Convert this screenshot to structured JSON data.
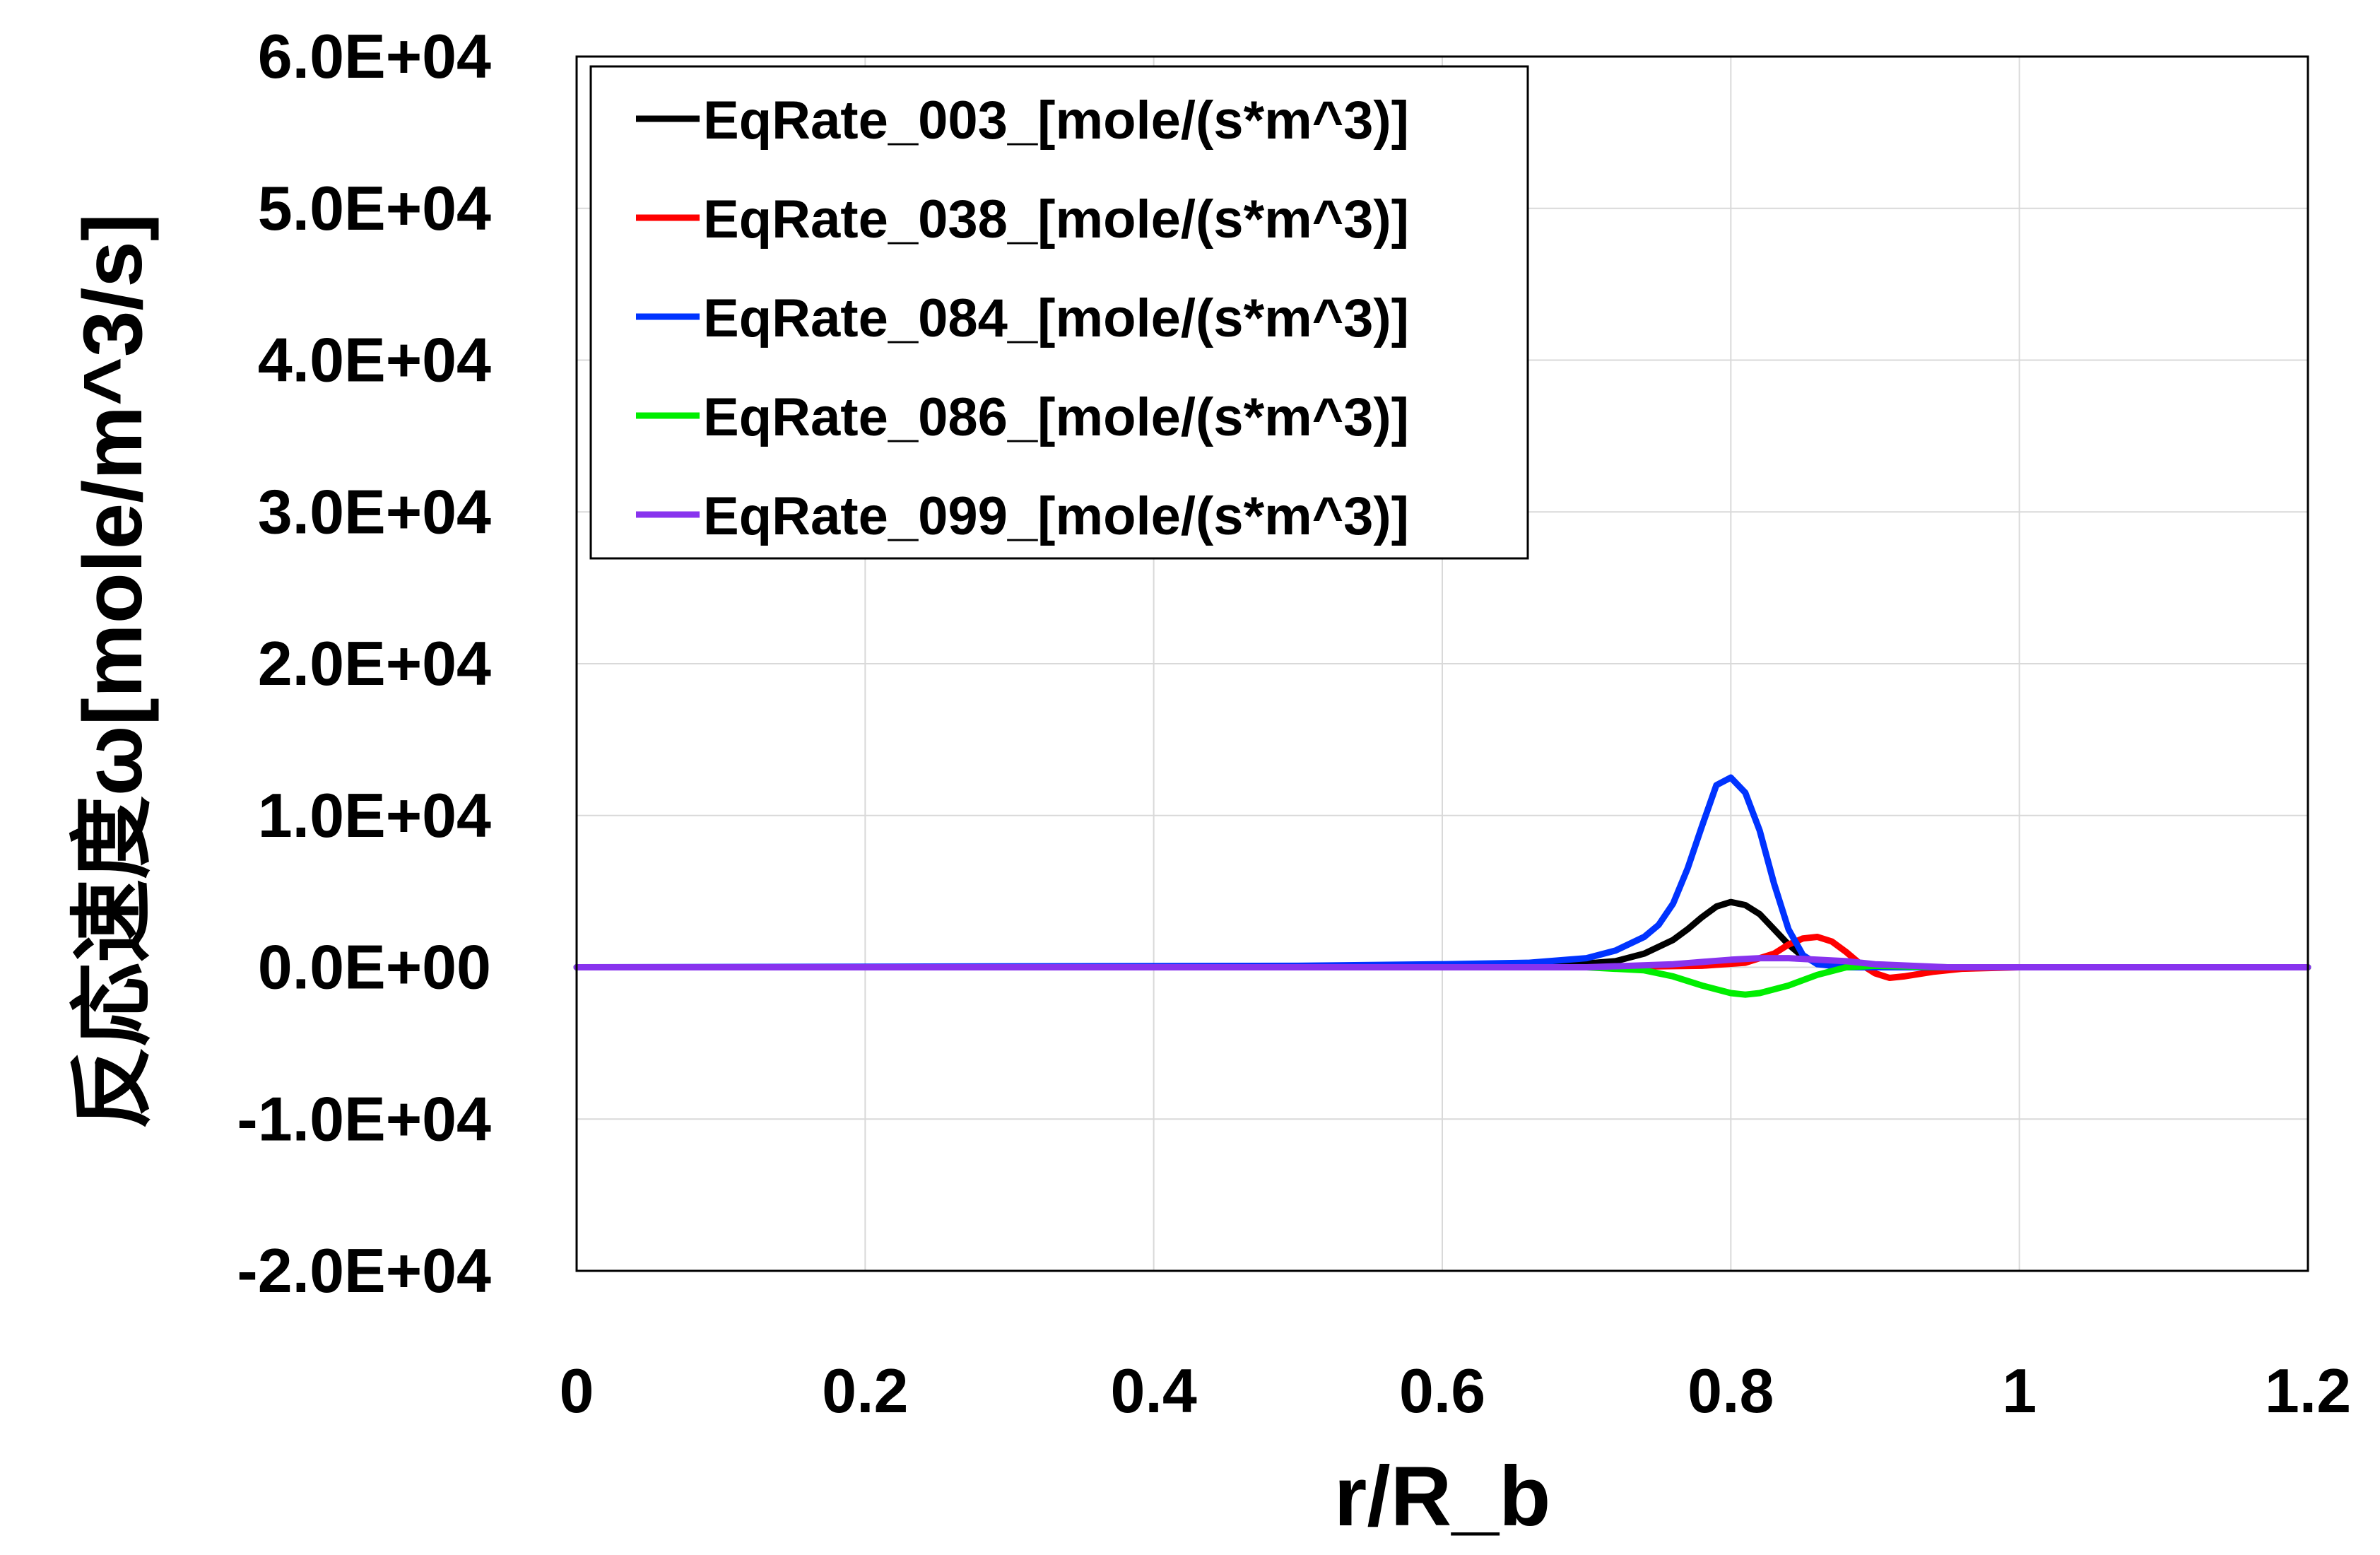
{
  "chart_data": {
    "type": "line",
    "title": "",
    "xlabel": "r/R_b",
    "ylabel": "反応速度ω[mole/m^3/s]",
    "xlim": [
      0,
      1.2
    ],
    "ylim": [
      -20000,
      60000
    ],
    "x_ticks": [
      0,
      0.2,
      0.4,
      0.6,
      0.8,
      1,
      1.2
    ],
    "x_tick_labels": [
      "0",
      "0.2",
      "0.4",
      "0.6",
      "0.8",
      "1",
      "1.2"
    ],
    "y_ticks": [
      -20000,
      -10000,
      0,
      10000,
      20000,
      30000,
      40000,
      50000,
      60000
    ],
    "y_tick_labels": [
      "-2.0E+04",
      "-1.0E+04",
      "0.0E+00",
      "1.0E+04",
      "2.0E+04",
      "3.0E+04",
      "4.0E+04",
      "5.0E+04",
      "6.0E+04"
    ],
    "grid": true,
    "legend_position": "top-left",
    "series": [
      {
        "name": "EqRate_003_[mole/(s*m^3)]",
        "color": "#000000",
        "x": [
          0,
          0.6,
          0.68,
          0.72,
          0.74,
          0.76,
          0.77,
          0.78,
          0.79,
          0.8,
          0.81,
          0.82,
          0.83,
          0.84,
          0.85,
          0.86,
          0.88,
          0.9,
          1.0,
          1.2
        ],
        "y": [
          0,
          0,
          100,
          400,
          900,
          1800,
          2500,
          3300,
          4000,
          4300,
          4100,
          3500,
          2500,
          1500,
          700,
          300,
          50,
          0,
          0,
          0
        ]
      },
      {
        "name": "EqRate_038_[mole/(s*m^3)]",
        "color": "#ff0000",
        "x": [
          0,
          0.7,
          0.78,
          0.81,
          0.83,
          0.84,
          0.85,
          0.86,
          0.87,
          0.88,
          0.89,
          0.9,
          0.91,
          0.92,
          0.94,
          0.96,
          1.0,
          1.2
        ],
        "y": [
          0,
          0,
          100,
          300,
          900,
          1500,
          1900,
          2000,
          1700,
          1000,
          200,
          -400,
          -700,
          -600,
          -300,
          -100,
          0,
          0
        ]
      },
      {
        "name": "EqRate_084_[mole/(s*m^3)]",
        "color": "#0033ff",
        "x": [
          0,
          0.5,
          0.6,
          0.66,
          0.7,
          0.72,
          0.74,
          0.75,
          0.76,
          0.77,
          0.78,
          0.79,
          0.8,
          0.81,
          0.82,
          0.83,
          0.84,
          0.85,
          0.86,
          0.88,
          0.9,
          1.0,
          1.2
        ],
        "y": [
          0,
          100,
          200,
          300,
          600,
          1100,
          2000,
          2800,
          4200,
          6500,
          9300,
          12000,
          12500,
          11500,
          9000,
          5500,
          2500,
          800,
          200,
          0,
          0,
          0,
          0
        ]
      },
      {
        "name": "EqRate_086_[mole/(s*m^3)]",
        "color": "#00ee00",
        "x": [
          0,
          0.7,
          0.74,
          0.76,
          0.78,
          0.8,
          0.81,
          0.82,
          0.84,
          0.86,
          0.88,
          0.9,
          0.95,
          1.2
        ],
        "y": [
          0,
          0,
          -200,
          -600,
          -1200,
          -1700,
          -1800,
          -1700,
          -1200,
          -500,
          0,
          100,
          0,
          0
        ]
      },
      {
        "name": "EqRate_099_[mole/(s*m^3)]",
        "color": "#8833ee",
        "x": [
          0,
          0.7,
          0.76,
          0.8,
          0.82,
          0.84,
          0.86,
          0.88,
          0.9,
          0.95,
          1.2
        ],
        "y": [
          0,
          0,
          200,
          500,
          600,
          600,
          500,
          400,
          200,
          0,
          0
        ]
      }
    ]
  }
}
